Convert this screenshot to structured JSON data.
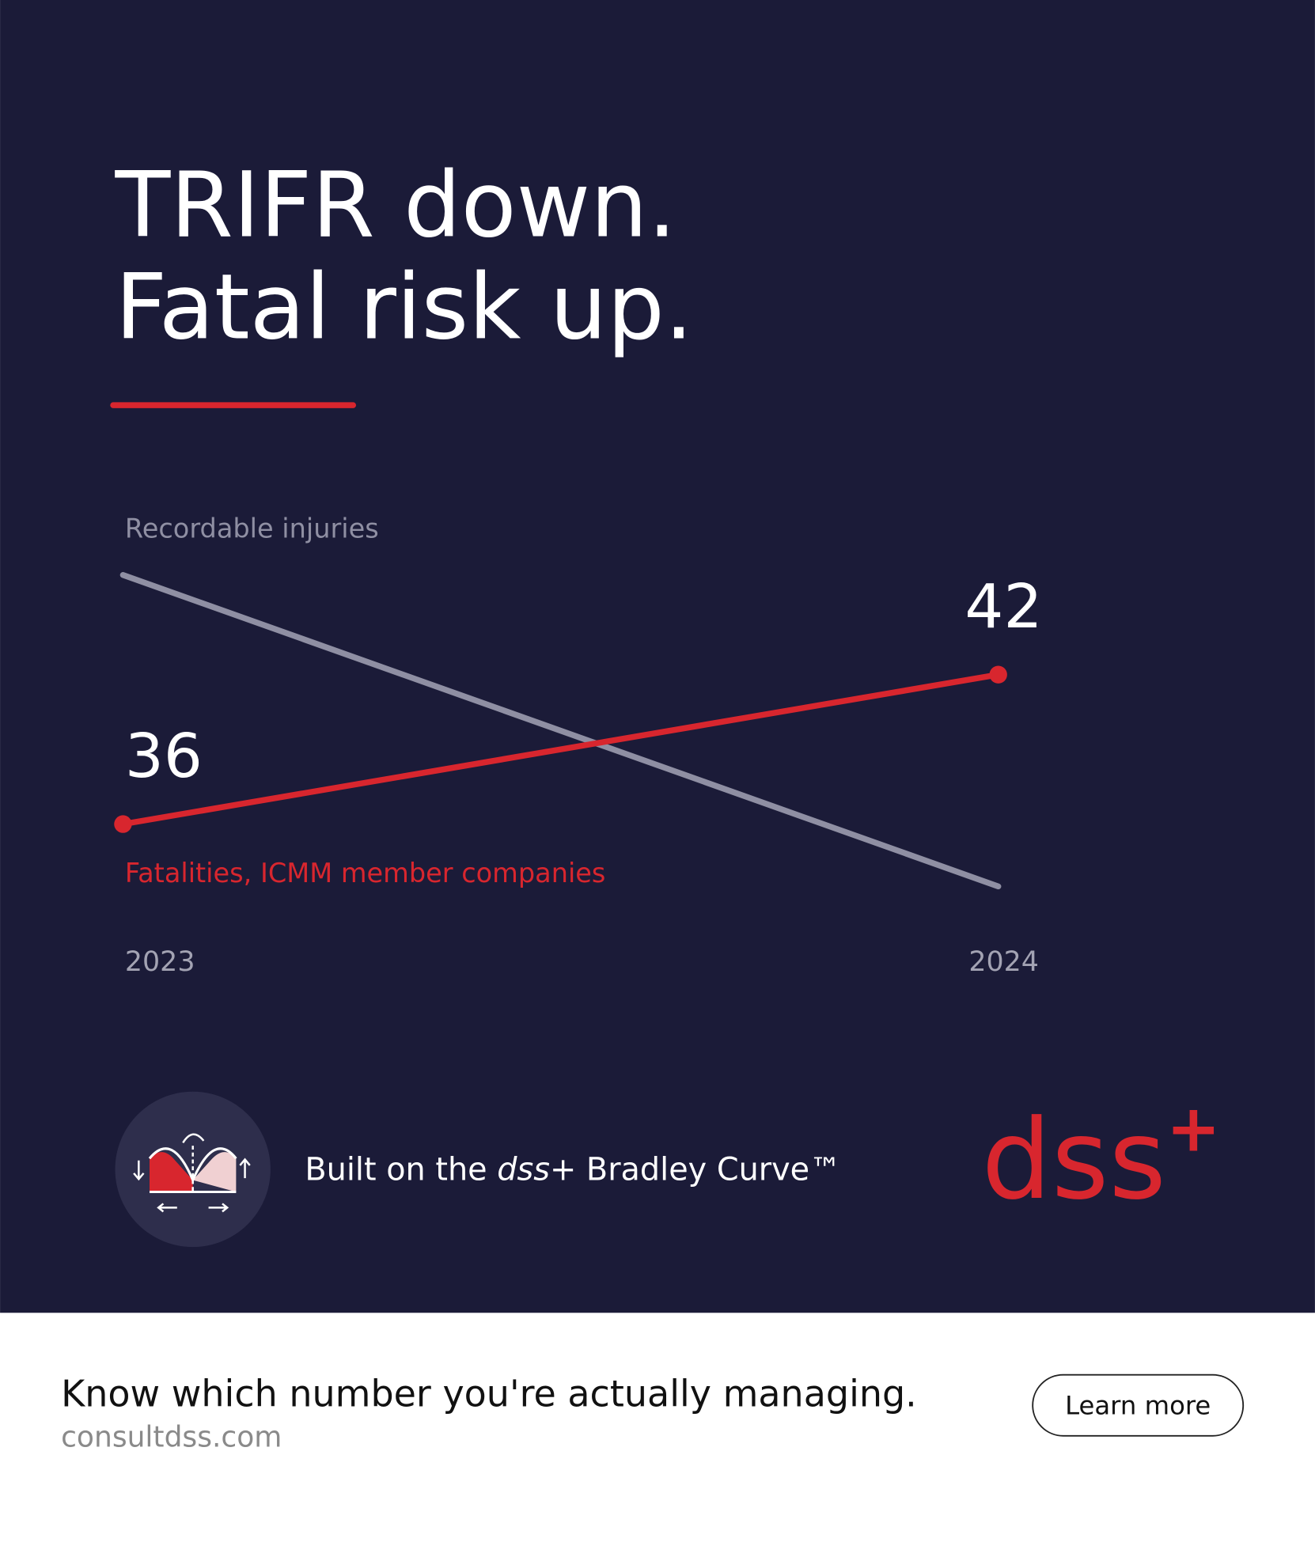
{
  "header": {
    "title_lines": [
      "TRIFR down.",
      "Fatal risk up."
    ]
  },
  "chart_data": {
    "type": "line",
    "categories": [
      "2023",
      "2024"
    ],
    "series": [
      {
        "name": "Recordable injuries",
        "color": "#8f8fa3",
        "values": [
          46,
          33.5
        ],
        "markers": false
      },
      {
        "name": "Fatalities, ICMM member companies",
        "color": "#d8262e",
        "values": [
          36,
          42
        ],
        "markers": true
      }
    ],
    "ylim": [
      30,
      48
    ]
  },
  "footer": {
    "tagline_parts": [
      "Built on the ",
      "dss+",
      " Bradley Curve™"
    ],
    "logo": {
      "text": "dss",
      "mark": "+"
    }
  },
  "cta": {
    "headline": "Know which number you're actually managing.",
    "url": "consultdss.com",
    "button": "Learn more"
  }
}
